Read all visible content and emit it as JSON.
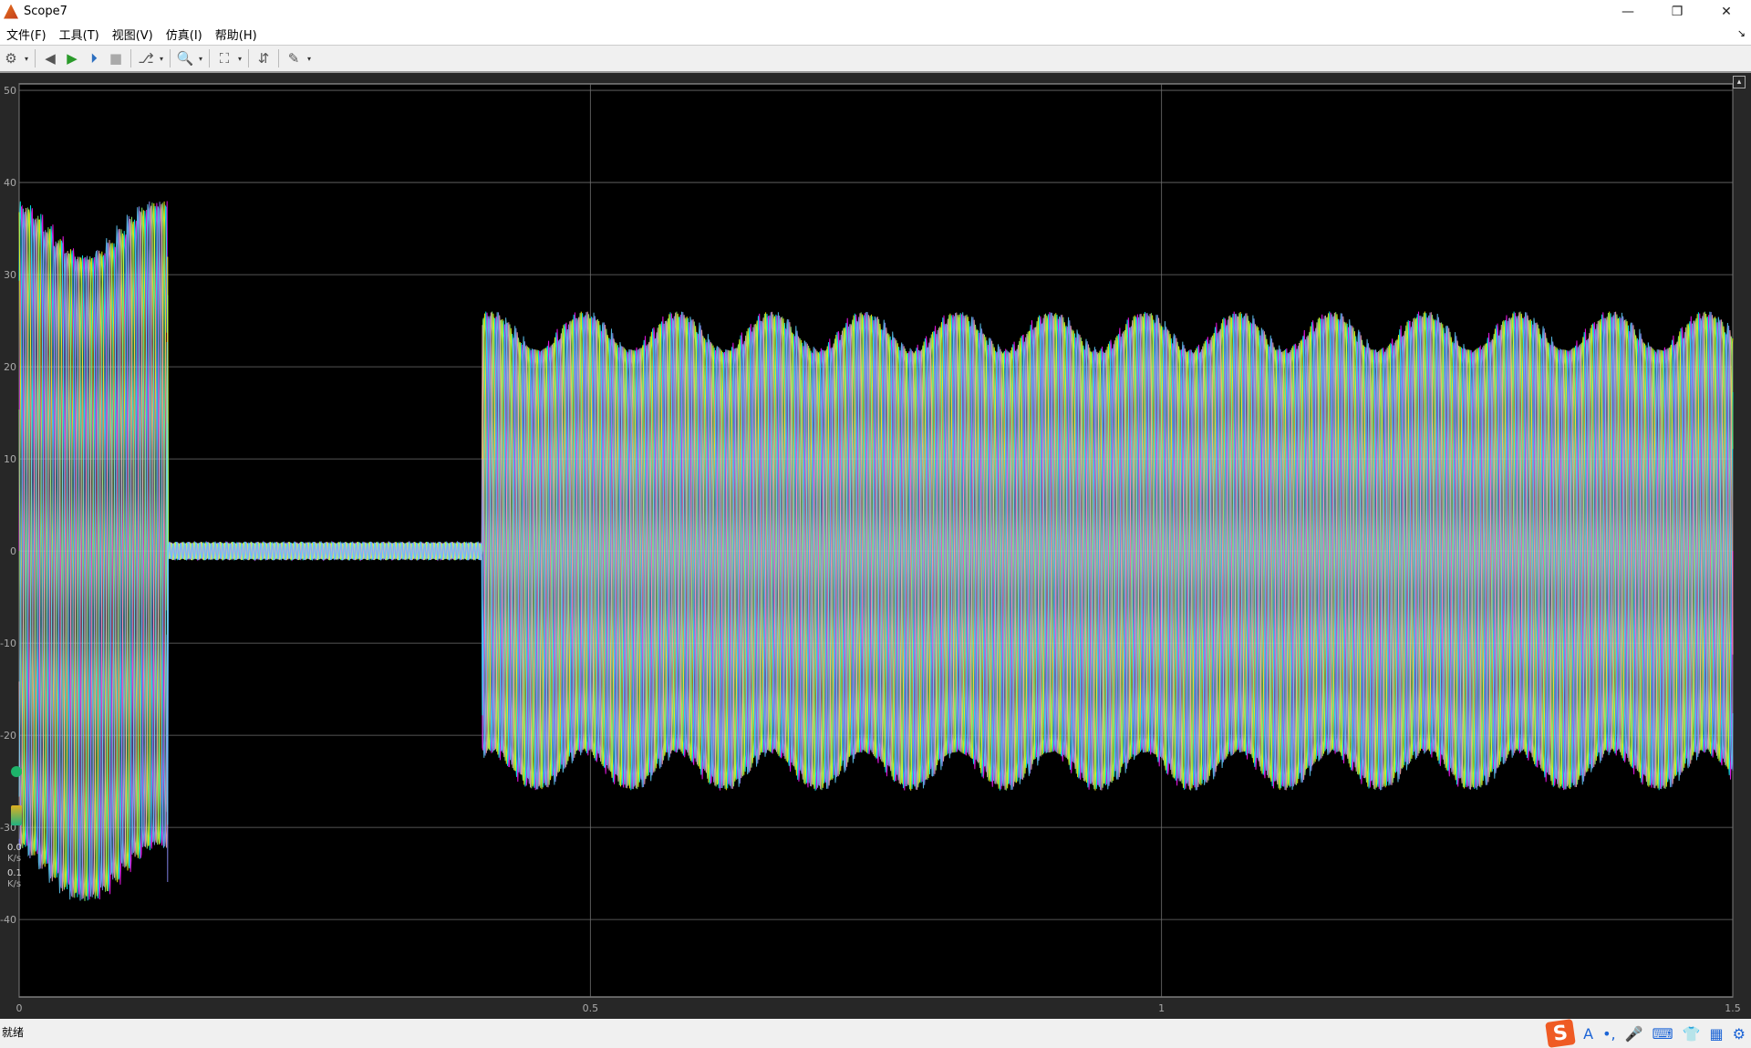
{
  "window": {
    "title": "Scope7",
    "minimize": "—",
    "restore": "❐",
    "close": "✕"
  },
  "menu": [
    "文件(F)",
    "工具(T)",
    "视图(V)",
    "仿真(I)",
    "帮助(H)"
  ],
  "toolbar": [
    {
      "icon": "gear-icon",
      "glyph": "⚙",
      "dropdown": true
    },
    {
      "icon": "step-back-icon",
      "glyph": "◀",
      "dropdown": false
    },
    {
      "icon": "run-icon",
      "glyph": "▶",
      "dropdown": false
    },
    {
      "icon": "step-forward-icon",
      "glyph": "⏵",
      "dropdown": false
    },
    {
      "icon": "stop-icon",
      "glyph": "■",
      "dropdown": false
    },
    {
      "icon": "highlight-block-icon",
      "glyph": "⎇",
      "dropdown": true
    },
    {
      "icon": "zoom-icon",
      "glyph": "🔍",
      "dropdown": true
    },
    {
      "icon": "autoscale-icon",
      "glyph": "⛶",
      "dropdown": true
    },
    {
      "icon": "triggers-icon",
      "glyph": "⇵",
      "dropdown": false
    },
    {
      "icon": "measurements-icon",
      "glyph": "✎",
      "dropdown": true
    }
  ],
  "status": "就绪",
  "net_widget": {
    "up": "0.0",
    "up_unit": "K/s",
    "down": "0.1",
    "down_unit": "K/s"
  },
  "tray": {
    "ime_logo": "S",
    "items": [
      "A",
      "•,",
      "🎤",
      "⌨",
      "👕",
      "▦",
      "⚙"
    ]
  },
  "colors": {
    "background": "#000000",
    "grid": "#6e6e6e",
    "axes": "#b0b0b0",
    "series": [
      "#ff19ff",
      "#00ffff",
      "#ffff11",
      "#90ff70",
      "#ffb0b0",
      "#9090ff",
      "#60d0ff"
    ]
  },
  "chart_data": {
    "type": "line",
    "xlim": [
      0,
      1.5
    ],
    "ylim": [
      -48.4,
      50.7
    ],
    "xticks": [
      "0",
      "0.5",
      "1",
      "1.5"
    ],
    "yticks": [
      "50",
      "40",
      "30",
      "20",
      "10",
      "0",
      "-10",
      "-20",
      "-30",
      "-40"
    ],
    "grid": true,
    "series_count": 7,
    "segments": [
      {
        "x_start": 0,
        "x_end": 0.13,
        "amplitude": 38
      },
      {
        "x_start": 0.13,
        "x_end": 0.405,
        "amplitude": 1
      },
      {
        "x_start": 0.405,
        "x_end": 1.5,
        "amplitude": 26
      }
    ]
  }
}
